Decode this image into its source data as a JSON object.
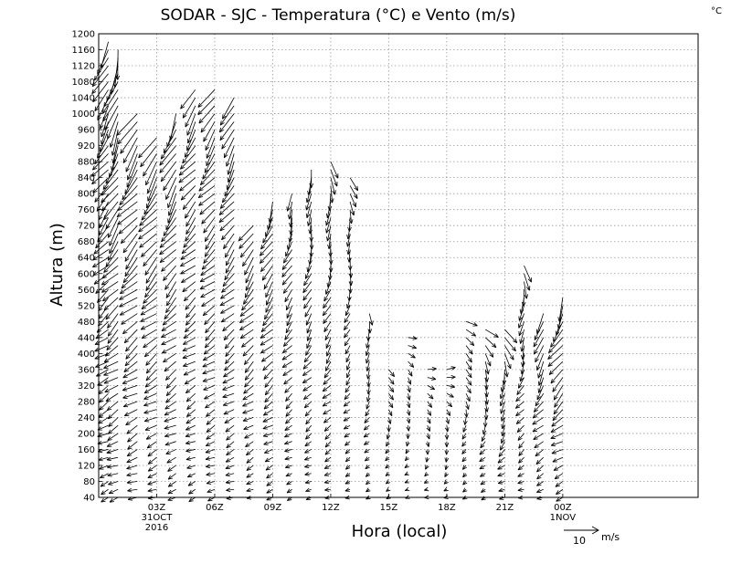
{
  "chart_data": {
    "type": "wind-barb-profile",
    "title": "SODAR - SJC - Temperatura (°C) e Vento (m/s)",
    "units_label": "°C",
    "xlabel": "Hora (local)",
    "ylabel": "Altura (m)",
    "ylim": [
      40,
      1200
    ],
    "y_ticks": [
      40,
      80,
      120,
      160,
      200,
      240,
      280,
      320,
      360,
      400,
      440,
      480,
      520,
      560,
      600,
      640,
      680,
      720,
      760,
      800,
      840,
      880,
      920,
      960,
      1000,
      1040,
      1080,
      1120,
      1160,
      1200
    ],
    "x_range_hours": [
      0,
      31
    ],
    "x_ticks": [
      {
        "hour": 3,
        "lines": [
          "03Z",
          "31OCT",
          "2016"
        ]
      },
      {
        "hour": 6,
        "lines": [
          "06Z"
        ]
      },
      {
        "hour": 9,
        "lines": [
          "09Z"
        ]
      },
      {
        "hour": 12,
        "lines": [
          "12Z"
        ]
      },
      {
        "hour": 15,
        "lines": [
          "15Z"
        ]
      },
      {
        "hour": 18,
        "lines": [
          "18Z"
        ]
      },
      {
        "hour": 21,
        "lines": [
          "21Z"
        ]
      },
      {
        "hour": 24,
        "lines": [
          "00Z",
          "1NOV"
        ]
      }
    ],
    "reference_vector": {
      "speed": 10,
      "unit": "m/s",
      "label": "10",
      "unit_label": "m/s"
    },
    "profiles": [
      {
        "hour": 0.5,
        "top": 1180,
        "speed": 9,
        "veer": 12
      },
      {
        "hour": 1.0,
        "top": 1160,
        "speed": 10,
        "veer": 14
      },
      {
        "hour": 2.0,
        "top": 1000,
        "speed": 10,
        "veer": 10
      },
      {
        "hour": 3.0,
        "top": 940,
        "speed": 9,
        "veer": 10
      },
      {
        "hour": 4.0,
        "top": 1000,
        "speed": 9,
        "veer": 12
      },
      {
        "hour": 5.0,
        "top": 1060,
        "speed": 8,
        "veer": 10
      },
      {
        "hour": 6.0,
        "top": 1060,
        "speed": 8,
        "veer": 10
      },
      {
        "hour": 7.0,
        "top": 1040,
        "speed": 8,
        "veer": 12
      },
      {
        "hour": 8.0,
        "top": 720,
        "speed": 7,
        "veer": 10
      },
      {
        "hour": 9.0,
        "top": 780,
        "speed": 7,
        "veer": 12
      },
      {
        "hour": 10.0,
        "top": 800,
        "speed": 6,
        "veer": 14
      },
      {
        "hour": 11.0,
        "top": 860,
        "speed": 6,
        "veer": 18
      },
      {
        "hour": 12.0,
        "top": 880,
        "speed": 6,
        "veer": 20
      },
      {
        "hour": 13.0,
        "top": 840,
        "speed": 5,
        "veer": 22
      },
      {
        "hour": 14.0,
        "top": 500,
        "speed": 4,
        "veer": 20
      },
      {
        "hour": 15.0,
        "top": 360,
        "speed": 3,
        "veer": 30
      },
      {
        "hour": 16.0,
        "top": 440,
        "speed": 3,
        "veer": 35
      },
      {
        "hour": 17.0,
        "top": 360,
        "speed": 3,
        "veer": 40
      },
      {
        "hour": 18.0,
        "top": 360,
        "speed": 3,
        "veer": 40
      },
      {
        "hour": 19.0,
        "top": 480,
        "speed": 4,
        "veer": 35
      },
      {
        "hour": 20.0,
        "top": 460,
        "speed": 5,
        "veer": 30
      },
      {
        "hour": 21.0,
        "top": 460,
        "speed": 6,
        "veer": 25
      },
      {
        "hour": 22.0,
        "top": 620,
        "speed": 6,
        "veer": 20
      },
      {
        "hour": 23.0,
        "top": 500,
        "speed": 7,
        "veer": 15
      },
      {
        "hour": 24.0,
        "top": 540,
        "speed": 8,
        "veer": 12
      }
    ]
  }
}
